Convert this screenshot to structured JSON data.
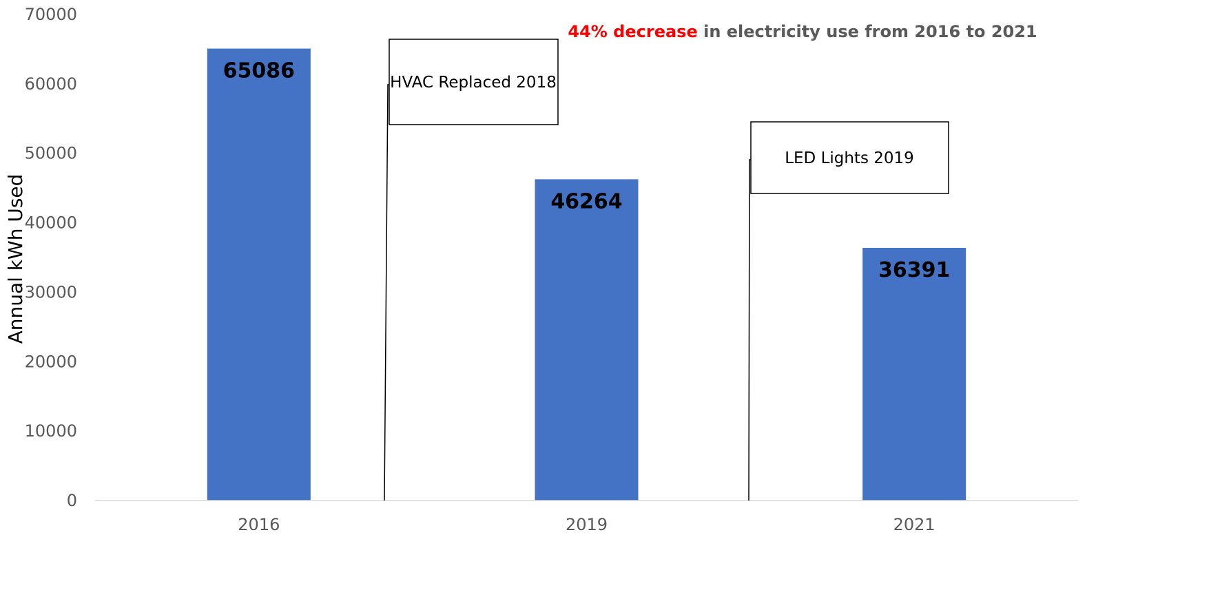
{
  "chart_data": {
    "type": "bar",
    "categories": [
      "2016",
      "2019",
      "2021"
    ],
    "values": [
      65086,
      46264,
      36391
    ],
    "data_labels": [
      "65086",
      "46264",
      "36391"
    ],
    "ylabel": "Annual kWh Used",
    "ylim": [
      0,
      70000
    ],
    "yticks": [
      "0",
      "10000",
      "20000",
      "30000",
      "40000",
      "50000",
      "60000",
      "70000"
    ],
    "grid": false,
    "bar_color": "#4472C4",
    "headline": {
      "highlight": "44% decrease",
      "rest": " in electricity use from 2016 to 2021",
      "highlight_color": "#FF0000",
      "rest_color": "#595959"
    },
    "annotations": [
      {
        "text": "HVAC Replaced 2018"
      },
      {
        "text": "LED Lights 2019"
      }
    ]
  }
}
